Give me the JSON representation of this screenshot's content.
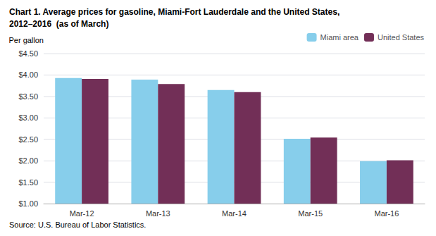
{
  "chart_data": {
    "type": "bar",
    "title": "Chart 1. Average prices for gasoline, Miami-Fort Lauderdale and the United States,",
    "subtitle": "2012–2016  (as of March)",
    "ylabel": "Per gallon",
    "annotations": [
      "Source: U.S. Bureau of Labor Statistics."
    ],
    "categories": [
      "Mar-12",
      "Mar-13",
      "Mar-14",
      "Mar-15",
      "Mar-16"
    ],
    "series": [
      {
        "name": "Miami area",
        "color": "#87CEEB",
        "values": [
          3.93,
          3.89,
          3.65,
          2.51,
          1.99
        ]
      },
      {
        "name": "United States",
        "color": "#722F57",
        "values": [
          3.91,
          3.79,
          3.6,
          2.54,
          2.01
        ]
      }
    ],
    "ylim": [
      1.0,
      4.5
    ],
    "yticks": [
      {
        "value": 1.0,
        "label": "$1.00"
      },
      {
        "value": 1.5,
        "label": "$1.50"
      },
      {
        "value": 2.0,
        "label": "$2.00"
      },
      {
        "value": 2.5,
        "label": "$2.50"
      },
      {
        "value": 3.0,
        "label": "$3.00"
      },
      {
        "value": 3.5,
        "label": "$3.50"
      },
      {
        "value": 4.0,
        "label": "$4.00"
      },
      {
        "value": 4.5,
        "label": "$4.50"
      }
    ],
    "grid": true,
    "legend": "upper right"
  }
}
